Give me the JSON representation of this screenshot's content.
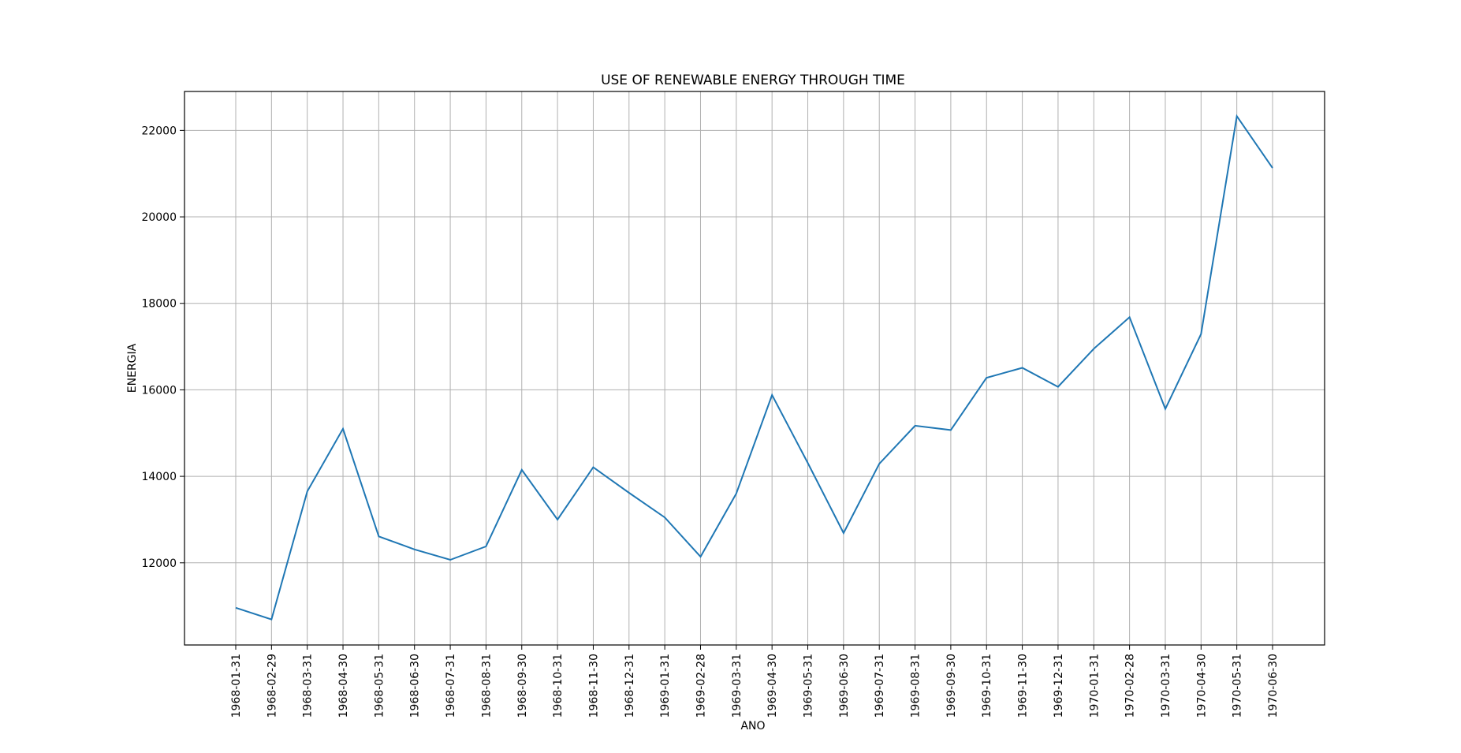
{
  "chart_data": {
    "type": "line",
    "title": "USE OF RENEWABLE ENERGY THROUGH TIME",
    "xlabel": "ANO",
    "ylabel": "ENERGIA",
    "x": [
      "1968-01-31",
      "1968-02-29",
      "1968-03-31",
      "1968-04-30",
      "1968-05-31",
      "1968-06-30",
      "1968-07-31",
      "1968-08-31",
      "1968-09-30",
      "1968-10-31",
      "1968-11-30",
      "1968-12-31",
      "1969-01-31",
      "1969-02-28",
      "1969-03-31",
      "1969-04-30",
      "1969-05-31",
      "1969-06-30",
      "1969-07-31",
      "1969-08-31",
      "1969-09-30",
      "1969-10-31",
      "1969-11-30",
      "1969-12-31",
      "1970-01-31",
      "1970-02-28",
      "1970-03-31",
      "1970-04-30",
      "1970-05-31",
      "1970-06-30"
    ],
    "series": [
      {
        "color": "#1f77b4",
        "values": [
          10960,
          10690,
          13650,
          15100,
          12610,
          12310,
          12070,
          12380,
          14150,
          13000,
          14210,
          13620,
          13050,
          12140,
          13600,
          15880,
          14310,
          12690,
          14290,
          15170,
          15070,
          16280,
          16510,
          16070,
          16950,
          17680,
          15560,
          17290,
          22330,
          21130
        ]
      }
    ],
    "ylim": [
      10100,
      22900
    ],
    "yticks": [
      12000,
      14000,
      16000,
      18000,
      20000,
      22000
    ],
    "grid": true,
    "legend": "none"
  }
}
